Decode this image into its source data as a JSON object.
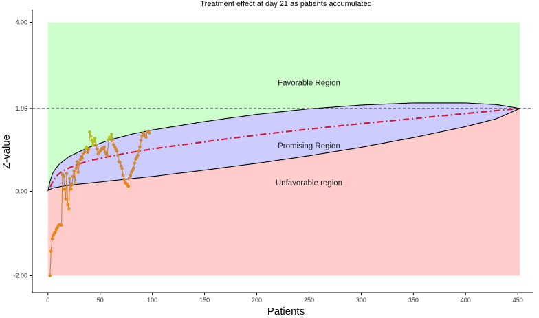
{
  "chart_data": {
    "type": "line",
    "title": "Treatment effect at day  21  as patients accumulated",
    "xlabel": "Patients",
    "ylabel": "Z-value",
    "xlim": [
      -15,
      465
    ],
    "ylim": [
      -2.4,
      4.3
    ],
    "x_ticks": [
      0,
      50,
      100,
      150,
      200,
      250,
      300,
      350,
      400,
      450
    ],
    "y_ticks": [
      {
        "value": -2,
        "label": "-2.00"
      },
      {
        "value": 0,
        "label": "0.00"
      },
      {
        "value": 1.96,
        "label": "1.96"
      },
      {
        "value": 4,
        "label": "4.00"
      }
    ],
    "grid": false,
    "max_patients": 452,
    "critical_value": 1.96,
    "regions": [
      {
        "name": "Favorable Region",
        "label_at": [
          250,
          2.57
        ],
        "color": "#ccffcc"
      },
      {
        "name": "Promising Region",
        "label_at": [
          250,
          1.08
        ],
        "color": "#ccccff"
      },
      {
        "name": "Unfavorable region",
        "label_at": [
          250,
          0.2
        ],
        "color": "#ffcccc"
      }
    ],
    "promising_upper_boundary": {
      "x": [
        0,
        1,
        5,
        10,
        20,
        40,
        60,
        80,
        100,
        150,
        200,
        250,
        300,
        350,
        400,
        430,
        452
      ],
      "y": [
        0.02,
        0.18,
        0.45,
        0.62,
        0.82,
        1.05,
        1.22,
        1.35,
        1.45,
        1.65,
        1.82,
        1.95,
        2.04,
        2.09,
        2.09,
        2.05,
        1.96
      ]
    },
    "promising_lower_boundary": {
      "x": [
        0,
        5,
        20,
        50,
        100,
        150,
        200,
        250,
        300,
        350,
        400,
        430,
        452
      ],
      "y": [
        0.02,
        0.08,
        0.14,
        0.22,
        0.35,
        0.5,
        0.66,
        0.84,
        1.04,
        1.27,
        1.53,
        1.72,
        1.96
      ]
    },
    "conditional_power_curve": {
      "x": [
        2,
        10,
        25,
        50,
        100,
        150,
        200,
        250,
        300,
        350,
        400,
        452
      ],
      "y": [
        0.1,
        0.4,
        0.6,
        0.78,
        1.0,
        1.17,
        1.33,
        1.47,
        1.6,
        1.72,
        1.84,
        1.96
      ]
    },
    "series": [
      {
        "color": "#cc7a26",
        "x": [
          2,
          3,
          4,
          5,
          6,
          7,
          8,
          9,
          10,
          11,
          12,
          13,
          14,
          15,
          16,
          17,
          18,
          19,
          20,
          21,
          22,
          23,
          24,
          25,
          26,
          27,
          28,
          29,
          30,
          31,
          32,
          33,
          34,
          35,
          36,
          37,
          38,
          39,
          40,
          41,
          42,
          43,
          44,
          45,
          46,
          47,
          48,
          49,
          50,
          51,
          52,
          53,
          54,
          55,
          56,
          57,
          58,
          59,
          60,
          61,
          62,
          63,
          64,
          65,
          66,
          67,
          68,
          69,
          70,
          71,
          72,
          73,
          74,
          75,
          76,
          77,
          78,
          79,
          80,
          81,
          82,
          83,
          84,
          85,
          86,
          87,
          88,
          89,
          90,
          91,
          92,
          93,
          94,
          95,
          96,
          97
        ],
        "y": [
          -2.0,
          -1.42,
          -1.13,
          -1.05,
          -1.0,
          -0.96,
          -0.9,
          -0.86,
          -0.81,
          -0.79,
          -0.79,
          -0.8,
          0.4,
          0.35,
          0.05,
          -0.18,
          0.42,
          -0.32,
          -0.42,
          0.3,
          0.05,
          0.15,
          0.35,
          0.48,
          0.2,
          0.55,
          0.7,
          0.45,
          0.65,
          0.75,
          0.82,
          0.78,
          0.9,
          0.93,
          1.01,
          1.05,
          0.92,
          0.99,
          1.4,
          1.3,
          1.2,
          1.1,
          1.18,
          1.25,
          1.1,
          1.0,
          0.88,
          0.92,
          0.95,
          0.98,
          1.02,
          1.0,
          1.05,
          0.92,
          0.88,
          0.84,
          1.22,
          1.28,
          1.25,
          1.35,
          1.2,
          1.1,
          1.05,
          1.0,
          0.95,
          0.85,
          0.7,
          0.68,
          0.6,
          0.54,
          0.38,
          0.28,
          0.2,
          0.18,
          0.15,
          0.12,
          0.32,
          0.38,
          0.45,
          0.5,
          0.55,
          0.66,
          0.76,
          0.8,
          0.85,
          0.95,
          1.05,
          1.2,
          1.3,
          1.38,
          1.35,
          1.3,
          1.28,
          1.4,
          1.42,
          1.38
        ]
      }
    ]
  }
}
